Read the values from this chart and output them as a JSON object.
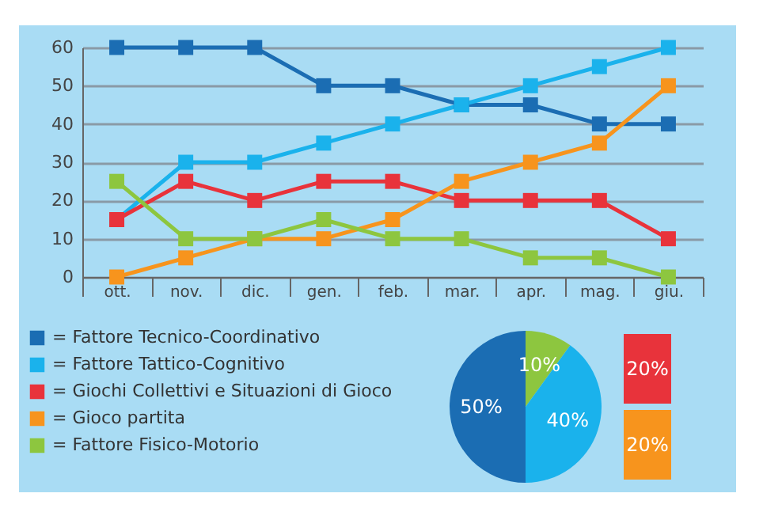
{
  "chart_data": [
    {
      "type": "line",
      "categories": [
        "ott.",
        "nov.",
        "dic.",
        "gen.",
        "feb.",
        "mar.",
        "apr.",
        "mag.",
        "giu."
      ],
      "ylim": [
        0,
        60
      ],
      "yticks": [
        0,
        10,
        20,
        30,
        40,
        50,
        60
      ],
      "grid": "y",
      "legend": "bottom left",
      "marker": "square",
      "series": [
        {
          "name": "= Fattore Tecnico-Coordinativo",
          "color": "#1b6db3",
          "values": [
            60,
            60,
            60,
            50,
            50,
            45,
            45,
            40,
            40
          ]
        },
        {
          "name": "= Fattore Tattico-Cognitivo",
          "color": "#1ab2ec",
          "values": [
            15,
            30,
            30,
            35,
            40,
            45,
            50,
            55,
            60
          ]
        },
        {
          "name": "= Giochi Collettivi e Situazioni di Gioco",
          "color": "#e8333b",
          "values": [
            15,
            25,
            20,
            25,
            25,
            20,
            20,
            20,
            10
          ]
        },
        {
          "name": "= Gioco partita",
          "color": "#f7941d",
          "values": [
            0,
            5,
            10,
            10,
            15,
            25,
            30,
            35,
            50
          ]
        },
        {
          "name": "= Fattore Fisico-Motorio",
          "color": "#8dc63f",
          "values": [
            25,
            10,
            10,
            15,
            10,
            10,
            5,
            5,
            0
          ]
        }
      ]
    },
    {
      "type": "pie",
      "categories": [
        null,
        null,
        null
      ],
      "values": [
        10,
        40,
        50
      ],
      "colors": [
        "#8dc63f",
        "#1ab2ec",
        "#1b6db3"
      ],
      "value_labels": [
        "10%",
        "40%",
        "50%"
      ]
    },
    {
      "type": "bar",
      "stacked": true,
      "categories": [
        null
      ],
      "series": [
        {
          "color": "#f7941d",
          "values": [
            20
          ],
          "value_labels": [
            "20%"
          ]
        },
        {
          "color": "#e8333b",
          "values": [
            20
          ],
          "value_labels": [
            "20%"
          ]
        }
      ]
    }
  ]
}
